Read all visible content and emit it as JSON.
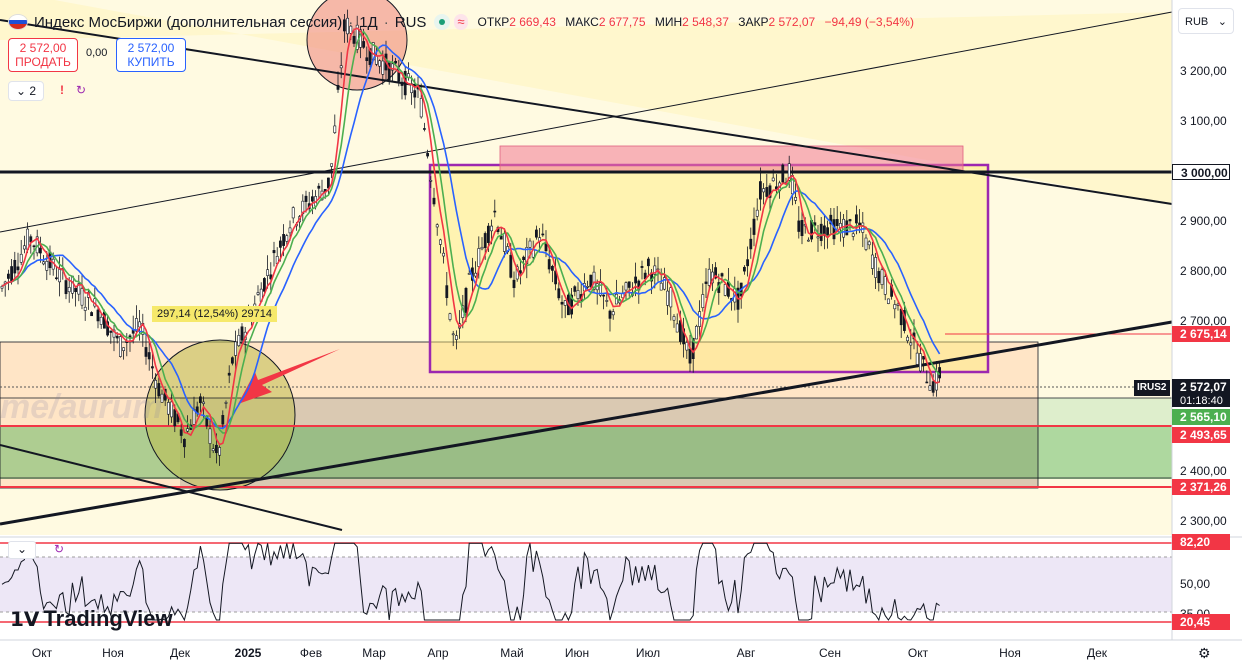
{
  "header": {
    "title": "Индекс МосБиржи (дополнительная сессия)",
    "timeframe": "1Д",
    "exchange": "RUS",
    "open_label": "ОТКР",
    "open": "2 669,43",
    "high_label": "МАКС",
    "high": "2 677,75",
    "low_label": "МИН",
    "low": "2 548,37",
    "close_label": "ЗАКР",
    "close": "2 572,07",
    "change": "−94,49 (−3,54%)"
  },
  "trade": {
    "sell_price": "2 572,00",
    "sell_label": "ПРОДАТЬ",
    "spread": "0,00",
    "buy_price": "2 572,00",
    "buy_label": "КУПИТЬ"
  },
  "indicators_count": "2",
  "currency": "RUB",
  "price_axis": [
    "3 200,00",
    "3 100,00",
    "2 900,00",
    "2 800,00",
    "2 700,00",
    "2 400,00",
    "2 300,00"
  ],
  "price_tags": {
    "level_3000": "3 000,00",
    "level_2675": "2 675,14",
    "symbol": "IRUS2",
    "last": "2 572,07",
    "countdown": "01:18:40",
    "level_2565": "2 565,10",
    "level_2493": "2 493,65",
    "level_2371": "2 371,26"
  },
  "annotation": "297,14 (12,54%) 29714",
  "watermark": "me/aurum",
  "rsi": {
    "top_tag": "82,20",
    "mid_label": "50,00",
    "low_label": "35,00",
    "bottom_tag": "20,45"
  },
  "x_axis": [
    "Окт",
    "Ноя",
    "Дек",
    "2025",
    "Фев",
    "Мар",
    "Апр",
    "Май",
    "Июн",
    "Июл",
    "Авг",
    "Сен",
    "Окт",
    "Ноя",
    "Дек"
  ],
  "logo": "TradingView",
  "colors": {
    "up": "#26a69a",
    "down": "#ef5350",
    "candle": "#131722",
    "fast_ma": "#f23645",
    "mid_ma": "#4caf50",
    "slow_ma": "#2962ff",
    "rsi_line": "#131722",
    "box_border": "#9c27b0",
    "green_zone": "#4caf50"
  }
}
